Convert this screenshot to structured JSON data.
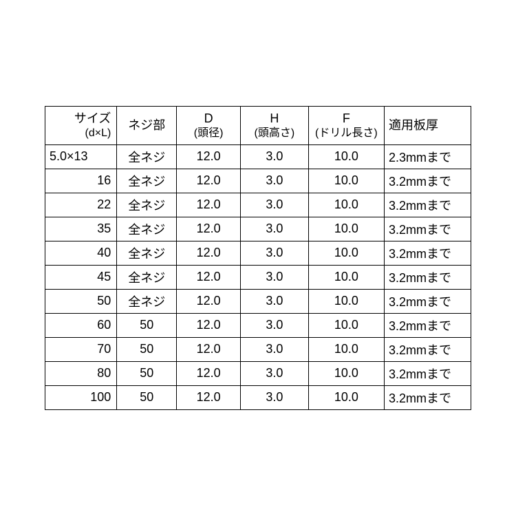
{
  "table": {
    "type": "table",
    "border_color": "#000000",
    "background_color": "#ffffff",
    "text_color": "#000000",
    "header_fontsize": 18,
    "sub_fontsize": 16,
    "cell_fontsize": 18,
    "columns": [
      {
        "key": "size",
        "main": "サイズ",
        "sub": "(d×L)",
        "width_pct": 16,
        "align": "right"
      },
      {
        "key": "thread",
        "main": "ネジ部",
        "sub": "",
        "width_pct": 14,
        "align": "center"
      },
      {
        "key": "d",
        "main": "D",
        "sub": "(頭径)",
        "width_pct": 15,
        "align": "center"
      },
      {
        "key": "h",
        "main": "H",
        "sub": "(頭高さ)",
        "width_pct": 16,
        "align": "center"
      },
      {
        "key": "f",
        "main": "F",
        "sub": "(ドリル長さ)",
        "width_pct": 18,
        "align": "center"
      },
      {
        "key": "apply",
        "main": "適用板厚",
        "sub": "",
        "width_pct": 20,
        "align": "left"
      }
    ],
    "rows": [
      {
        "size": "5.0×13",
        "thread": "全ネジ",
        "d": "12.0",
        "h": "3.0",
        "f": "10.0",
        "apply": "2.3mmまで",
        "size_first": true
      },
      {
        "size": "16",
        "thread": "全ネジ",
        "d": "12.0",
        "h": "3.0",
        "f": "10.0",
        "apply": "3.2mmまで"
      },
      {
        "size": "22",
        "thread": "全ネジ",
        "d": "12.0",
        "h": "3.0",
        "f": "10.0",
        "apply": "3.2mmまで"
      },
      {
        "size": "35",
        "thread": "全ネジ",
        "d": "12.0",
        "h": "3.0",
        "f": "10.0",
        "apply": "3.2mmまで"
      },
      {
        "size": "40",
        "thread": "全ネジ",
        "d": "12.0",
        "h": "3.0",
        "f": "10.0",
        "apply": "3.2mmまで"
      },
      {
        "size": "45",
        "thread": "全ネジ",
        "d": "12.0",
        "h": "3.0",
        "f": "10.0",
        "apply": "3.2mmまで"
      },
      {
        "size": "50",
        "thread": "全ネジ",
        "d": "12.0",
        "h": "3.0",
        "f": "10.0",
        "apply": "3.2mmまで"
      },
      {
        "size": "60",
        "thread": "50",
        "d": "12.0",
        "h": "3.0",
        "f": "10.0",
        "apply": "3.2mmまで"
      },
      {
        "size": "70",
        "thread": "50",
        "d": "12.0",
        "h": "3.0",
        "f": "10.0",
        "apply": "3.2mmまで"
      },
      {
        "size": "80",
        "thread": "50",
        "d": "12.0",
        "h": "3.0",
        "f": "10.0",
        "apply": "3.2mmまで"
      },
      {
        "size": "100",
        "thread": "50",
        "d": "12.0",
        "h": "3.0",
        "f": "10.0",
        "apply": "3.2mmまで"
      }
    ]
  }
}
